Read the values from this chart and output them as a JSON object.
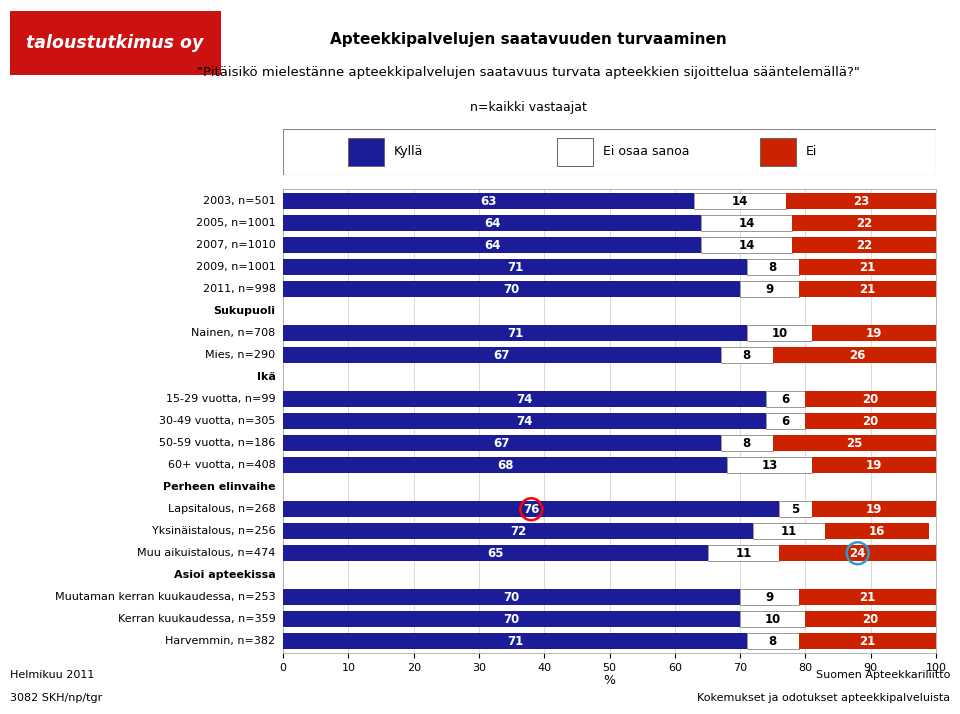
{
  "title1": "Apteekkipalvelujen saatavuuden turvaaminen",
  "title2": "\"Pitäisikö mielestänne apteekkipalvelujen saatavuus turvata apteekkien sijoittelua sääntelemällä?\"",
  "subtitle": "n=kaikki vastaajat",
  "categories": [
    "2003, n=501",
    "2005, n=1001",
    "2007, n=1010",
    "2009, n=1001",
    "2011, n=998",
    "Sukupuoli",
    "Nainen, n=708",
    "Mies, n=290",
    "Ikä",
    "15-29 vuotta, n=99",
    "30-49 vuotta, n=305",
    "50-59 vuotta, n=186",
    "60+ vuotta, n=408",
    "Perheen elinvaihe",
    "Lapsitalous, n=268",
    "Yksinäistalous, n=256",
    "Muu aikuistalous, n=474",
    "Asioi apteekissa",
    "Muutaman kerran kuukaudessa, n=253",
    "Kerran kuukaudessa, n=359",
    "Harvemmin, n=382"
  ],
  "kylla": [
    63,
    64,
    64,
    71,
    70,
    0,
    71,
    67,
    0,
    74,
    74,
    67,
    68,
    0,
    76,
    72,
    65,
    0,
    70,
    70,
    71
  ],
  "ei_osaa": [
    14,
    14,
    14,
    8,
    9,
    0,
    10,
    8,
    0,
    6,
    6,
    8,
    13,
    0,
    5,
    11,
    11,
    0,
    9,
    10,
    8
  ],
  "ei": [
    23,
    22,
    22,
    21,
    21,
    0,
    19,
    26,
    0,
    20,
    20,
    25,
    19,
    0,
    19,
    16,
    24,
    0,
    21,
    20,
    21
  ],
  "header_rows": [
    5,
    8,
    13,
    17
  ],
  "color_kylla": "#1c1c99",
  "color_ei_osaa": "#ffffff",
  "color_ei": "#cc2200",
  "bar_height": 0.72,
  "legend_kylla": "Kyllä",
  "legend_ei_osaa": "Ei osaa sanoa",
  "legend_ei": "Ei",
  "xlabel": "%",
  "footer_left1": "Helmikuu 2011",
  "footer_left2": "3082 SKH/np/tgr",
  "footer_right1": "Suomen Apteekkariliitto",
  "footer_right2": "Kokemukset ja odotukset apteekkipalveluista",
  "logo_text": "taloustutkimus oy",
  "logo_bg": "#cc1111",
  "logo_text_color": "#ffffff"
}
